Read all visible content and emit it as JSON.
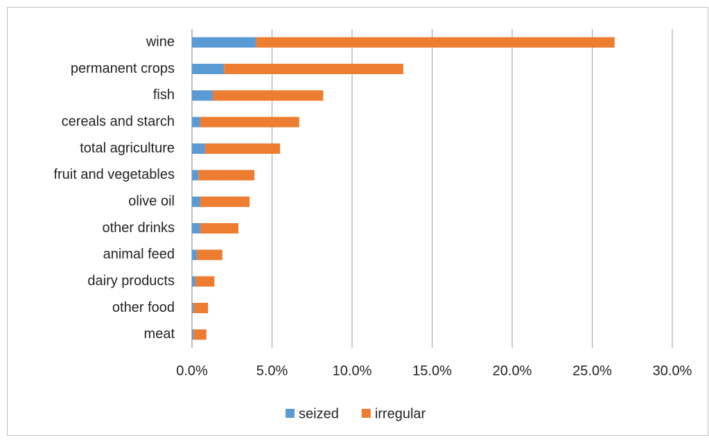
{
  "chart_data": {
    "type": "stacked-bar-horizontal",
    "categories": [
      "wine",
      "permanent crops",
      "fish",
      "cereals and starch",
      "total agriculture",
      "fruit and vegetables",
      "olive oil",
      "other drinks",
      "animal feed",
      "dairy products",
      "other food",
      "meat"
    ],
    "series": [
      {
        "name": "seized",
        "color": "#5b9bd5",
        "values": [
          4.0,
          2.0,
          1.3,
          0.5,
          0.8,
          0.4,
          0.5,
          0.5,
          0.3,
          0.2,
          0.1,
          0.1
        ]
      },
      {
        "name": "irregular",
        "color": "#ed7d31",
        "values": [
          22.4,
          11.2,
          6.9,
          6.2,
          4.7,
          3.5,
          3.1,
          2.4,
          1.6,
          1.2,
          0.9,
          0.8
        ]
      }
    ],
    "xlim": [
      0,
      30
    ],
    "xticks": [
      {
        "value": 0,
        "label": "0.0%"
      },
      {
        "value": 5,
        "label": "5.0%"
      },
      {
        "value": 10,
        "label": "10.0%"
      },
      {
        "value": 15,
        "label": "15.0%"
      },
      {
        "value": 20,
        "label": "20.0%"
      },
      {
        "value": 25,
        "label": "25.0%"
      },
      {
        "value": 30,
        "label": "30.0%"
      }
    ],
    "grid": true,
    "legend": "bottom"
  }
}
